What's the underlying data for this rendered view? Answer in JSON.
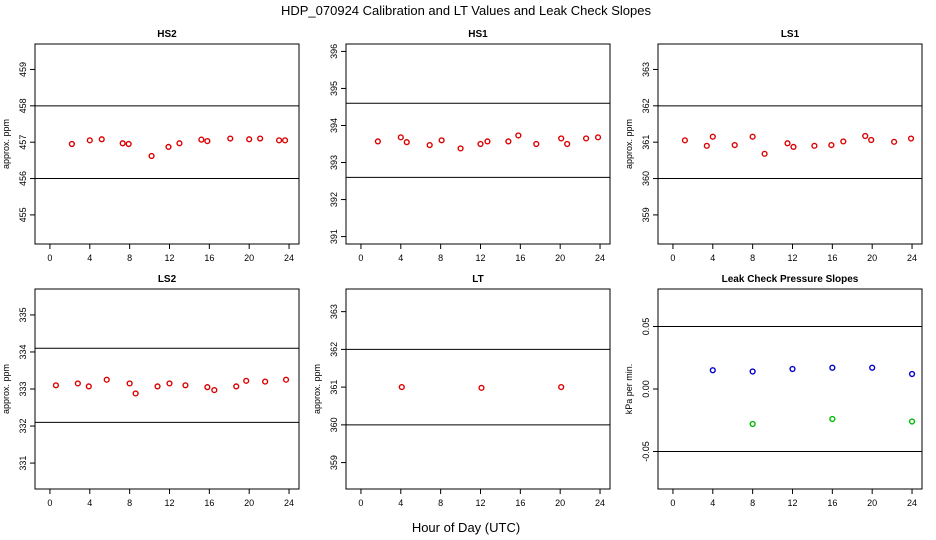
{
  "figure": {
    "title": "HDP_070924  Calibration and LT Values and Leak Check Slopes",
    "xlabel": "Hour of Day (UTC)"
  },
  "colors": {
    "red": "#dd0000",
    "blue": "#0000cc",
    "green": "#00bb00",
    "line": "#000000"
  },
  "chart_data": [
    {
      "type": "scatter",
      "title": "HS2",
      "ylabel": "approx. ppm",
      "xlim": [
        -1.5,
        25
      ],
      "ylim": [
        454.2,
        459.7
      ],
      "xticks": [
        0,
        4,
        8,
        12,
        16,
        20,
        24
      ],
      "xticklabels": [
        "0",
        "4",
        "8",
        "12",
        "16",
        "20",
        "24"
      ],
      "yticks": [
        455,
        456,
        457,
        458,
        459
      ],
      "yticklabels": [
        "455",
        "456",
        "457",
        "458",
        "459"
      ],
      "hlines": [
        456,
        458
      ],
      "series": [
        {
          "color": "red",
          "points": [
            [
              2.2,
              456.95
            ],
            [
              4,
              457.05
            ],
            [
              5.2,
              457.08
            ],
            [
              7.3,
              456.97
            ],
            [
              7.9,
              456.95
            ],
            [
              10.2,
              456.62
            ],
            [
              11.9,
              456.87
            ],
            [
              13,
              456.97
            ],
            [
              15.2,
              457.07
            ],
            [
              15.8,
              457.03
            ],
            [
              18.1,
              457.1
            ],
            [
              20,
              457.08
            ],
            [
              21.1,
              457.1
            ],
            [
              23,
              457.05
            ],
            [
              23.6,
              457.05
            ]
          ]
        }
      ]
    },
    {
      "type": "scatter",
      "title": "HS1",
      "ylabel": "",
      "xlim": [
        -1.5,
        25
      ],
      "ylim": [
        390.8,
        396.2
      ],
      "xticks": [
        0,
        4,
        8,
        12,
        16,
        20,
        24
      ],
      "xticklabels": [
        "0",
        "4",
        "8",
        "12",
        "16",
        "20",
        "24"
      ],
      "yticks": [
        391,
        392,
        393,
        394,
        395,
        396
      ],
      "yticklabels": [
        "391",
        "392",
        "393",
        "394",
        "395",
        "396"
      ],
      "hlines": [
        392.6,
        394.6
      ],
      "series": [
        {
          "color": "red",
          "points": [
            [
              1.7,
              393.57
            ],
            [
              4,
              393.68
            ],
            [
              4.6,
              393.55
            ],
            [
              6.9,
              393.47
            ],
            [
              8.1,
              393.6
            ],
            [
              10,
              393.38
            ],
            [
              12,
              393.5
            ],
            [
              12.7,
              393.57
            ],
            [
              14.8,
              393.57
            ],
            [
              15.8,
              393.73
            ],
            [
              17.6,
              393.5
            ],
            [
              20.1,
              393.65
            ],
            [
              20.7,
              393.5
            ],
            [
              22.6,
              393.65
            ],
            [
              23.8,
              393.68
            ]
          ]
        }
      ]
    },
    {
      "type": "scatter",
      "title": "LS1",
      "ylabel": "approx. ppm",
      "xlim": [
        -1.5,
        25
      ],
      "ylim": [
        358.2,
        363.7
      ],
      "xticks": [
        0,
        4,
        8,
        12,
        16,
        20,
        24
      ],
      "xticklabels": [
        "0",
        "4",
        "8",
        "12",
        "16",
        "20",
        "24"
      ],
      "yticks": [
        359,
        360,
        361,
        362,
        363
      ],
      "yticklabels": [
        "359",
        "360",
        "361",
        "362",
        "363"
      ],
      "hlines": [
        360,
        362
      ],
      "series": [
        {
          "color": "red",
          "points": [
            [
              1.2,
              361.05
            ],
            [
              3.4,
              360.9
            ],
            [
              4,
              361.15
            ],
            [
              6.2,
              360.92
            ],
            [
              8,
              361.15
            ],
            [
              9.2,
              360.68
            ],
            [
              11.5,
              360.97
            ],
            [
              12.1,
              360.87
            ],
            [
              14.2,
              360.9
            ],
            [
              15.9,
              360.92
            ],
            [
              17.1,
              361.02
            ],
            [
              19.3,
              361.17
            ],
            [
              19.9,
              361.06
            ],
            [
              22.2,
              361.01
            ],
            [
              23.9,
              361.1
            ]
          ]
        }
      ]
    },
    {
      "type": "scatter",
      "title": "LS2",
      "ylabel": "approx. ppm",
      "xlim": [
        -1.5,
        25
      ],
      "ylim": [
        330.3,
        335.7
      ],
      "xticks": [
        0,
        4,
        8,
        12,
        16,
        20,
        24
      ],
      "xticklabels": [
        "0",
        "4",
        "8",
        "12",
        "16",
        "20",
        "24"
      ],
      "yticks": [
        331,
        332,
        333,
        334,
        335
      ],
      "yticklabels": [
        "331",
        "332",
        "333",
        "334",
        "335"
      ],
      "hlines": [
        332.1,
        334.1
      ],
      "series": [
        {
          "color": "red",
          "points": [
            [
              0.6,
              333.1
            ],
            [
              2.8,
              333.15
            ],
            [
              3.9,
              333.07
            ],
            [
              5.7,
              333.25
            ],
            [
              8,
              333.15
            ],
            [
              8.6,
              332.88
            ],
            [
              10.8,
              333.07
            ],
            [
              12,
              333.15
            ],
            [
              13.6,
              333.1
            ],
            [
              15.8,
              333.05
            ],
            [
              16.5,
              332.97
            ],
            [
              18.7,
              333.07
            ],
            [
              19.7,
              333.22
            ],
            [
              21.6,
              333.2
            ],
            [
              23.7,
              333.25
            ]
          ]
        }
      ]
    },
    {
      "type": "scatter",
      "title": "LT",
      "ylabel": "approx. ppm",
      "xlim": [
        -1.5,
        25
      ],
      "ylim": [
        358.3,
        363.6
      ],
      "xticks": [
        0,
        4,
        8,
        12,
        16,
        20,
        24
      ],
      "xticklabels": [
        "0",
        "4",
        "8",
        "12",
        "16",
        "20",
        "24"
      ],
      "yticks": [
        359,
        360,
        361,
        362,
        363
      ],
      "yticklabels": [
        "359",
        "360",
        "361",
        "362",
        "363"
      ],
      "hlines": [
        360,
        362
      ],
      "series": [
        {
          "color": "red",
          "points": [
            [
              4.1,
              361
            ],
            [
              12.1,
              360.98
            ],
            [
              20.1,
              361
            ]
          ]
        }
      ]
    },
    {
      "type": "scatter",
      "title": "Leak Check Pressure Slopes",
      "ylabel": "kPa per min.",
      "xlim": [
        -1.5,
        25
      ],
      "ylim": [
        -0.08,
        0.08
      ],
      "xticks": [
        0,
        4,
        8,
        12,
        16,
        20,
        24
      ],
      "xticklabels": [
        "0",
        "4",
        "8",
        "12",
        "16",
        "20",
        "24"
      ],
      "yticks": [
        -0.05,
        0,
        0.05
      ],
      "yticklabels": [
        "-0.05",
        "0.00",
        "0.05"
      ],
      "hlines": [
        -0.05,
        0.05
      ],
      "series": [
        {
          "color": "blue",
          "points": [
            [
              4,
              0.015
            ],
            [
              8,
              0.014
            ],
            [
              12,
              0.016
            ],
            [
              16,
              0.017
            ],
            [
              20,
              0.017
            ],
            [
              24,
              0.012
            ]
          ]
        },
        {
          "color": "green",
          "points": [
            [
              8,
              -0.028
            ],
            [
              16,
              -0.024
            ],
            [
              24,
              -0.026
            ]
          ]
        }
      ]
    }
  ]
}
